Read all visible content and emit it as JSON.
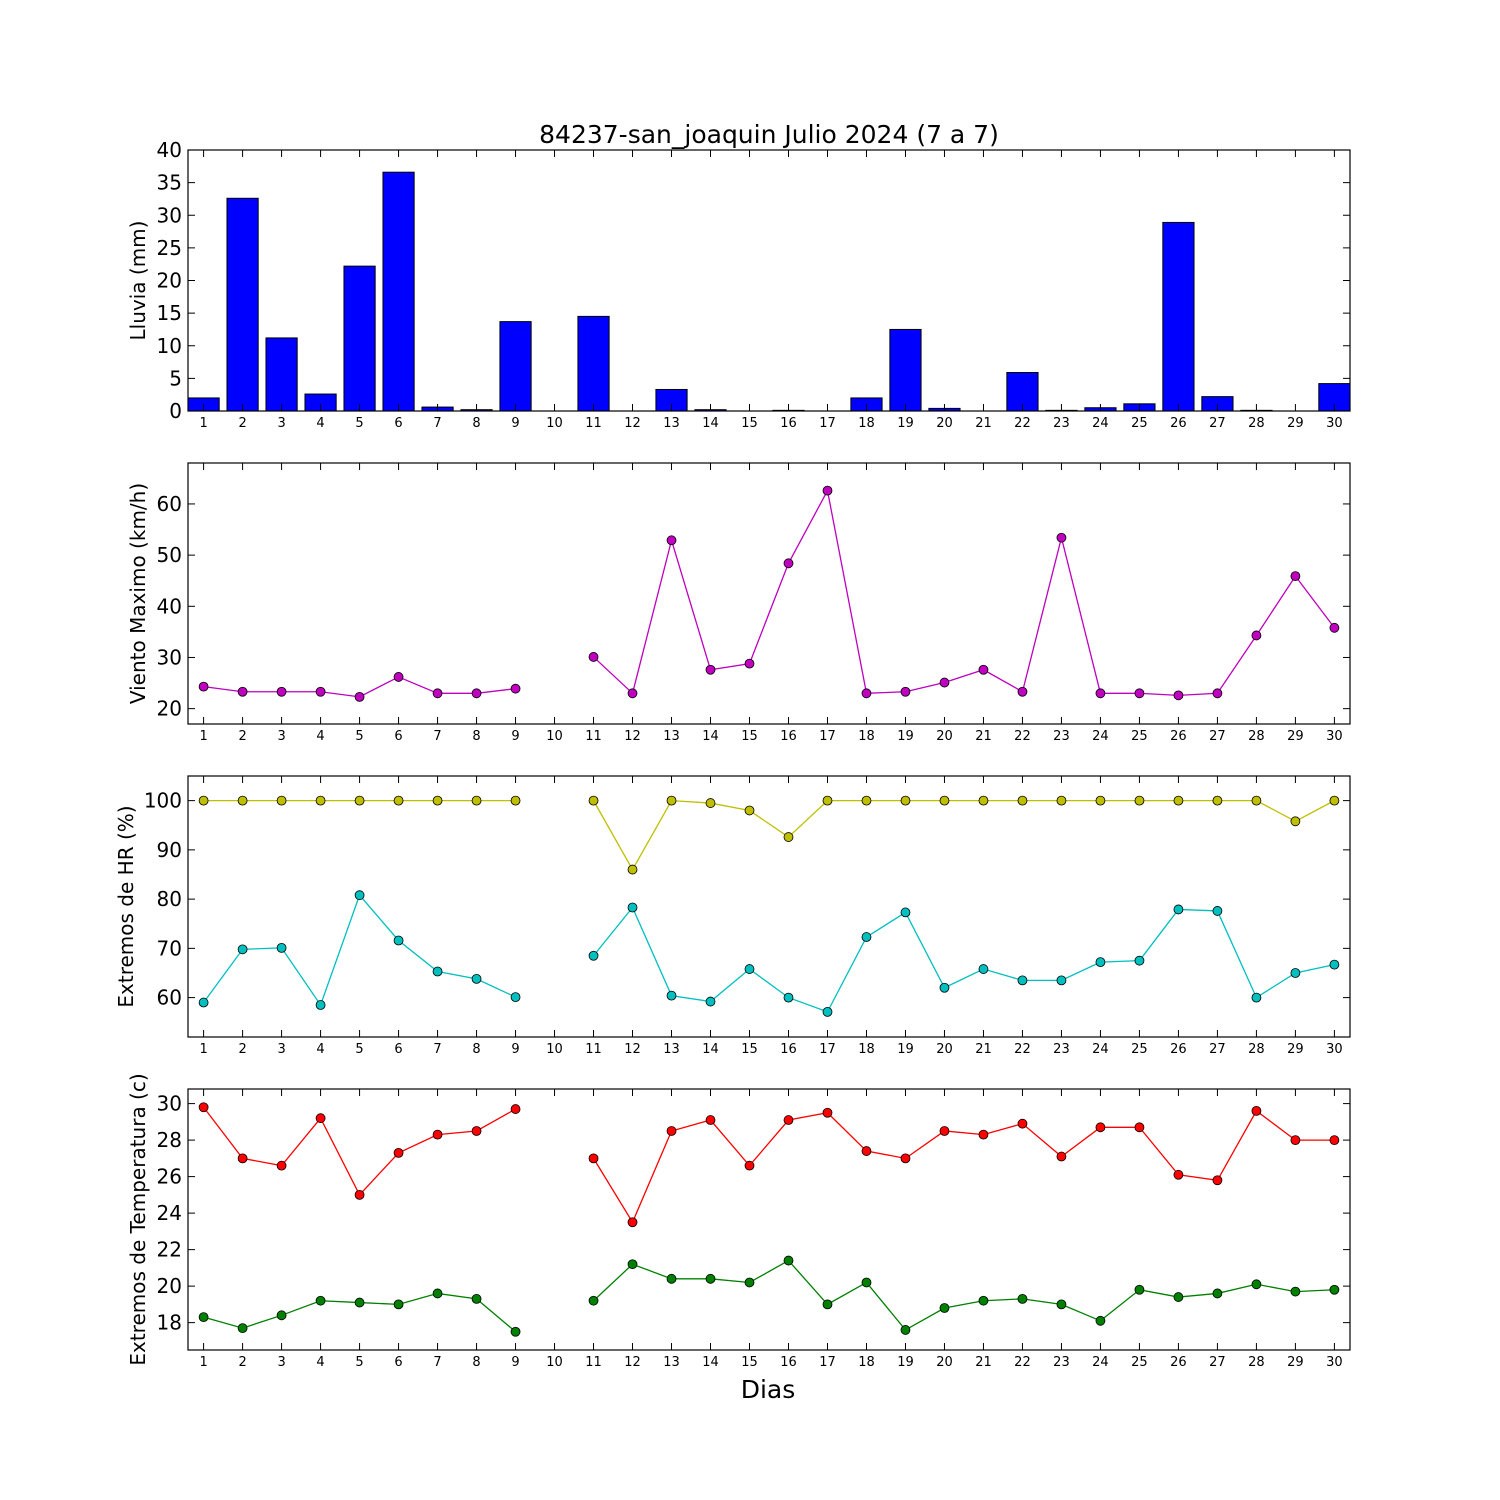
{
  "title": "84237-san_joaquin Julio 2024  (7 a 7)",
  "xlabel": "Dias",
  "chart_data": [
    {
      "type": "bar",
      "ylabel": "Lluvia (mm)",
      "ylim": [
        0,
        40
      ],
      "yticks": [
        0,
        5,
        10,
        15,
        20,
        25,
        30,
        35,
        40
      ],
      "categories": [
        1,
        2,
        3,
        4,
        5,
        6,
        7,
        8,
        9,
        10,
        11,
        12,
        13,
        14,
        15,
        16,
        17,
        18,
        19,
        20,
        21,
        22,
        23,
        24,
        25,
        26,
        27,
        28,
        29,
        30
      ],
      "series": [
        {
          "color": "#0000ff",
          "values": [
            2.0,
            32.6,
            11.2,
            2.6,
            22.2,
            36.6,
            0.6,
            0.2,
            13.7,
            0,
            14.5,
            0,
            3.3,
            0.2,
            0,
            0.1,
            0,
            2.0,
            12.5,
            0.4,
            0,
            5.9,
            0.1,
            0.5,
            1.1,
            28.9,
            2.2,
            0.1,
            0,
            4.2
          ]
        }
      ]
    },
    {
      "type": "line",
      "ylabel": "Viento Maximo (km/h)",
      "ylim": [
        17,
        68
      ],
      "yticks": [
        20,
        30,
        40,
        50,
        60
      ],
      "x": [
        1,
        2,
        3,
        4,
        5,
        6,
        7,
        8,
        9,
        10,
        11,
        12,
        13,
        14,
        15,
        16,
        17,
        18,
        19,
        20,
        21,
        22,
        23,
        24,
        25,
        26,
        27,
        28,
        29,
        30
      ],
      "series": [
        {
          "color": "#bf00bf",
          "values": [
            24.3,
            23.3,
            23.3,
            23.3,
            22.3,
            26.2,
            23.0,
            23.0,
            23.9,
            null,
            30.1,
            23.0,
            52.9,
            27.6,
            28.8,
            48.4,
            62.6,
            23.0,
            23.3,
            25.1,
            27.6,
            23.3,
            53.4,
            23.0,
            23.0,
            22.6,
            23.0,
            34.3,
            45.9,
            35.8
          ]
        }
      ]
    },
    {
      "type": "line",
      "ylabel": "Extremos de HR (%)",
      "ylim": [
        52,
        105
      ],
      "yticks": [
        60,
        70,
        80,
        90,
        100
      ],
      "x": [
        1,
        2,
        3,
        4,
        5,
        6,
        7,
        8,
        9,
        10,
        11,
        12,
        13,
        14,
        15,
        16,
        17,
        18,
        19,
        20,
        21,
        22,
        23,
        24,
        25,
        26,
        27,
        28,
        29,
        30
      ],
      "series": [
        {
          "color": "#bfbf00",
          "values": [
            100,
            100,
            100,
            100,
            100,
            100,
            100,
            100,
            100,
            null,
            100,
            86,
            100,
            99.5,
            98,
            92.6,
            100,
            100,
            100,
            100,
            100,
            100,
            100,
            100,
            100,
            100,
            100,
            100,
            95.8,
            100
          ]
        },
        {
          "color": "#00bfbf",
          "values": [
            59.0,
            69.8,
            70.1,
            58.5,
            80.8,
            71.6,
            65.3,
            63.8,
            60.1,
            null,
            68.5,
            78.3,
            60.4,
            59.2,
            65.8,
            60.0,
            57.1,
            72.3,
            77.3,
            62.0,
            65.8,
            63.5,
            63.5,
            67.2,
            67.5,
            77.9,
            77.6,
            60.0,
            65.0,
            66.7
          ]
        }
      ]
    },
    {
      "type": "line",
      "ylabel": "Extremos de Temperatura (c)",
      "ylim": [
        16.5,
        30.8
      ],
      "yticks": [
        18,
        20,
        22,
        24,
        26,
        28,
        30
      ],
      "x": [
        1,
        2,
        3,
        4,
        5,
        6,
        7,
        8,
        9,
        10,
        11,
        12,
        13,
        14,
        15,
        16,
        17,
        18,
        19,
        20,
        21,
        22,
        23,
        24,
        25,
        26,
        27,
        28,
        29,
        30
      ],
      "series": [
        {
          "color": "#ff0000",
          "values": [
            29.8,
            27.0,
            26.6,
            29.2,
            25.0,
            27.3,
            28.3,
            28.5,
            29.7,
            null,
            27.0,
            23.5,
            28.5,
            29.1,
            26.6,
            29.1,
            29.5,
            27.4,
            27.0,
            28.5,
            28.3,
            28.9,
            27.1,
            28.7,
            28.7,
            26.1,
            25.8,
            29.6,
            28.0,
            28.0
          ]
        },
        {
          "color": "#008000",
          "values": [
            18.3,
            17.7,
            18.4,
            19.2,
            19.1,
            19.0,
            19.6,
            19.3,
            17.5,
            null,
            19.2,
            21.2,
            20.4,
            20.4,
            20.2,
            21.4,
            19.0,
            20.2,
            17.6,
            18.8,
            19.2,
            19.3,
            19.0,
            18.1,
            19.8,
            19.4,
            19.6,
            20.1,
            19.7,
            19.8
          ]
        }
      ]
    }
  ]
}
